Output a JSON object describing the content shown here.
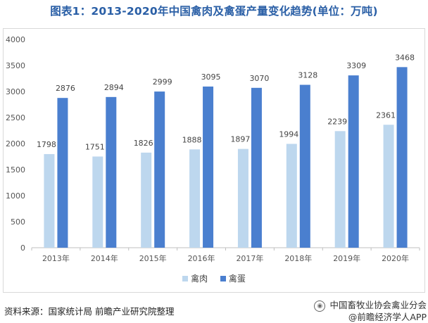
{
  "chart_data": {
    "type": "bar",
    "title": "图表1：2013-2020年中国禽肉及禽蛋产量变化趋势(单位：万吨)",
    "categories": [
      "2013年",
      "2014年",
      "2015年",
      "2016年",
      "2017年",
      "2018年",
      "2019年",
      "2020年"
    ],
    "series": [
      {
        "name": "禽肉",
        "values": [
          1798,
          1751,
          1826,
          1888,
          1897,
          1994,
          2239,
          2361
        ],
        "color": "#bdd7ee"
      },
      {
        "name": "禽蛋",
        "values": [
          2876,
          2894,
          2999,
          3095,
          3070,
          3128,
          3309,
          3468
        ],
        "color": "#4a7fcf"
      }
    ],
    "ylim": [
      0,
      4000
    ],
    "yticks": [
      0,
      500,
      1000,
      1500,
      2000,
      2500,
      3000,
      3500,
      4000
    ],
    "grid": false,
    "legend_position": "bottom"
  },
  "footer": {
    "source": "资料来源：国家统计局 前瞻产业研究院整理",
    "watermark_line1": "中国畜牧业协会禽业分会",
    "watermark_line2": "@前瞻经济学人APP"
  }
}
